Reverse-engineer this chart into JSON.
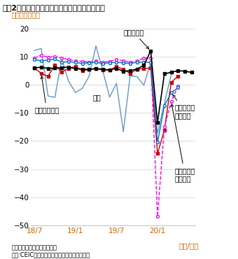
{
  "title": "図表2：鉱工業生産、小売売上高、固定資産投資",
  "subtitle": "（前年比、％）",
  "xlabel": "（年/月）",
  "ylim": [
    -50,
    20
  ],
  "yticks": [
    -50,
    -40,
    -30,
    -20,
    -10,
    0,
    10,
    20
  ],
  "xtick_labels": [
    "18/7",
    "19/1",
    "19/7",
    "20/1"
  ],
  "note1": "注２月の数値は１－２月累計",
  "note2": "出所:CEIC、中国国家統計局より東海銀行作成",
  "x_indices": [
    0,
    1,
    2,
    3,
    4,
    5,
    6,
    7,
    8,
    9,
    10,
    11,
    12,
    13,
    14,
    15,
    16,
    17,
    18,
    19,
    20,
    21,
    22,
    23
  ],
  "x_tick_positions": [
    0,
    6,
    12,
    18
  ],
  "mining_production": [
    6.0,
    6.2,
    5.8,
    5.9,
    6.1,
    6.3,
    5.7,
    5.6,
    5.4,
    5.8,
    5.5,
    5.3,
    5.8,
    4.8,
    5.0,
    5.6,
    6.9,
    12.0,
    -13.5,
    3.9,
    4.4,
    5.0,
    4.8,
    4.4
  ],
  "retail_total": [
    9.0,
    8.5,
    8.8,
    9.1,
    8.0,
    8.2,
    7.9,
    7.6,
    7.8,
    8.0,
    7.5,
    7.8,
    8.0,
    7.8,
    7.5,
    8.0,
    8.0,
    8.0,
    -20.5,
    -7.5,
    -2.8,
    -1.1,
    null,
    null
  ],
  "retail_food": [
    9.5,
    10.5,
    9.8,
    10.0,
    9.5,
    9.0,
    8.5,
    8.3,
    8.0,
    8.5,
    8.0,
    8.3,
    9.0,
    8.5,
    8.0,
    8.5,
    9.5,
    9.5,
    -46.8,
    -15.0,
    -6.0,
    -0.5,
    null,
    null
  ],
  "fixed_asset": [
    6.0,
    4.0,
    3.0,
    7.0,
    4.5,
    5.8,
    6.5,
    5.0,
    5.4,
    5.7,
    5.2,
    5.2,
    6.5,
    5.5,
    4.0,
    5.5,
    5.8,
    5.9,
    -24.5,
    -16.1,
    0.8,
    3.1,
    null,
    null
  ],
  "export": [
    12.2,
    12.9,
    -4.0,
    -4.5,
    9.1,
    1.3,
    -2.8,
    -1.3,
    3.0,
    13.8,
    5.0,
    -4.4,
    0.5,
    -16.7,
    3.2,
    2.9,
    -0.2,
    7.9,
    -17.2,
    -6.6,
    3.5,
    null,
    null,
    null
  ],
  "color_mining": "#000000",
  "color_retail_total": "#0070c0",
  "color_retail_food": "#ff00ff",
  "color_fixed_asset": "#cc0000",
  "color_export": "#6699cc",
  "title_color": "#000000",
  "subtitle_color": "#cc6600",
  "xtick_color": "#cc6600",
  "xlabel_color": "#cc6600"
}
